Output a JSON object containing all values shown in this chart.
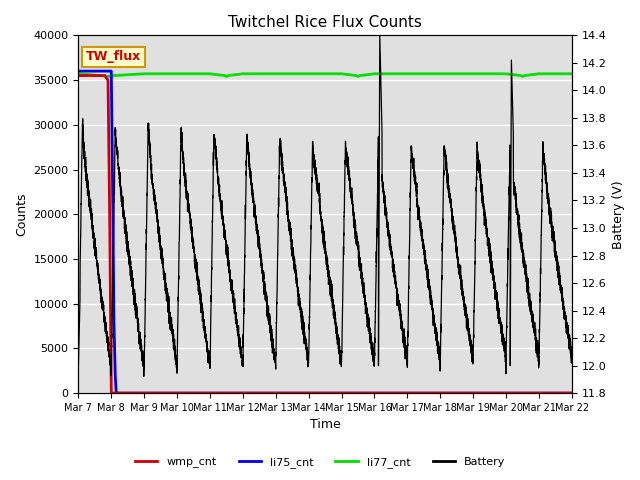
{
  "title": "Twitchel Rice Flux Counts",
  "xlabel": "Time",
  "ylabel_left": "Counts",
  "ylabel_right": "Battery (V)",
  "ylim_left": [
    0,
    40000
  ],
  "ylim_right": [
    11.8,
    14.4
  ],
  "yticks_left": [
    0,
    5000,
    10000,
    15000,
    20000,
    25000,
    30000,
    35000,
    40000
  ],
  "yticks_right": [
    11.8,
    12.0,
    12.2,
    12.4,
    12.6,
    12.8,
    13.0,
    13.2,
    13.4,
    13.6,
    13.8,
    14.0,
    14.2,
    14.4
  ],
  "x_tick_labels": [
    "Mar 7",
    "Mar 8",
    "Mar 9",
    "Mar 10",
    "Mar 11",
    "Mar 12",
    "Mar 13",
    "Mar 14",
    "Mar 15",
    "Mar 16",
    "Mar 17",
    "Mar 18",
    "Mar 19",
    "Mar 20",
    "Mar 21",
    "Mar 22"
  ],
  "annotation_text": "TW_flux",
  "annotation_color": "#cc0000",
  "annotation_bg": "#ffffcc",
  "annotation_border": "#cc9900",
  "background_color": "#e0e0e0",
  "li77_color": "#00dd00",
  "li75_color": "#0000ee",
  "wmp_color": "#cc0000",
  "battery_color": "#000000",
  "li77_value": 35700,
  "legend_labels": [
    "wmp_cnt",
    "li75_cnt",
    "li77_cnt",
    "Battery"
  ]
}
